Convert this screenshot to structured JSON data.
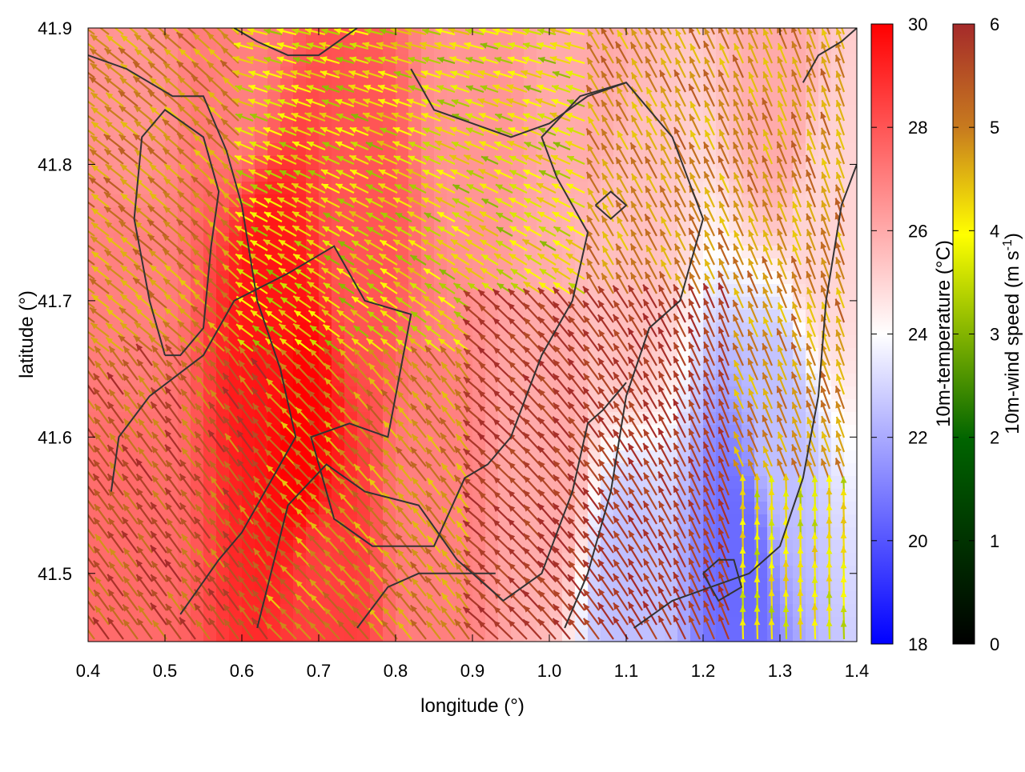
{
  "chart_data": {
    "type": "heatmap",
    "title": "",
    "xlabel": "longitude (°)",
    "ylabel": "latitude (°)",
    "xlim": [
      0.4,
      1.4
    ],
    "ylim": [
      41.45,
      41.9
    ],
    "xticks": [
      0.4,
      0.5,
      0.6,
      0.7,
      0.8,
      0.9,
      1.0,
      1.1,
      1.2,
      1.3,
      1.4
    ],
    "yticks": [
      41.5,
      41.6,
      41.7,
      41.8,
      41.9
    ],
    "xtick_labels": [
      "0.4",
      "0.5",
      "0.6",
      "0.7",
      "0.8",
      "0.9",
      "1.0",
      "1.1",
      "1.2",
      "1.3",
      "1.4"
    ],
    "ytick_labels": [
      "41.5",
      "41.6",
      "41.7",
      "41.8",
      "41.9"
    ],
    "grid": false,
    "temperature_colorbar": {
      "label": "10m-temperature (°C)",
      "range": [
        18,
        30
      ],
      "ticks": [
        18,
        20,
        22,
        24,
        26,
        28,
        30
      ],
      "tick_labels": [
        "18",
        "20",
        "22",
        "24",
        "26",
        "28",
        "30"
      ],
      "colors": [
        "#0000ff",
        "#ffffff",
        "#ff0000"
      ]
    },
    "wind_colorbar": {
      "label_main": "10m-wind speed (m s",
      "label_sup": "-1",
      "label_end": ")",
      "range": [
        0,
        6
      ],
      "ticks": [
        0,
        1,
        2,
        3,
        4,
        5,
        6
      ],
      "tick_labels": [
        "0",
        "1",
        "2",
        "3",
        "4",
        "5",
        "6"
      ],
      "colors": [
        "#000000",
        "#006400",
        "#ffff00",
        "#c87c1e",
        "#a52a2a"
      ]
    },
    "temperature_field_samples": [
      {
        "lon": 0.45,
        "lat": 41.85,
        "t": 26.5
      },
      {
        "lon": 0.45,
        "lat": 41.7,
        "t": 27.0
      },
      {
        "lon": 0.45,
        "lat": 41.55,
        "t": 27.5
      },
      {
        "lon": 0.63,
        "lat": 41.7,
        "t": 29.5
      },
      {
        "lon": 0.68,
        "lat": 41.6,
        "t": 30.0
      },
      {
        "lon": 0.75,
        "lat": 41.75,
        "t": 28.0
      },
      {
        "lon": 0.9,
        "lat": 41.85,
        "t": 26.5
      },
      {
        "lon": 1.05,
        "lat": 41.88,
        "t": 26.0
      },
      {
        "lon": 0.85,
        "lat": 41.55,
        "t": 27.0
      },
      {
        "lon": 1.0,
        "lat": 41.6,
        "t": 26.0
      },
      {
        "lon": 1.1,
        "lat": 41.72,
        "t": 25.5
      },
      {
        "lon": 1.3,
        "lat": 41.85,
        "t": 26.0
      },
      {
        "lon": 1.35,
        "lat": 41.75,
        "t": 25.0
      },
      {
        "lon": 1.3,
        "lat": 41.6,
        "t": 22.5
      },
      {
        "lon": 1.25,
        "lat": 41.5,
        "t": 20.5
      },
      {
        "lon": 1.1,
        "lat": 41.48,
        "t": 22.5
      },
      {
        "lon": 0.6,
        "lat": 41.88,
        "t": 27.0
      },
      {
        "lon": 0.7,
        "lat": 41.48,
        "t": 28.5
      }
    ],
    "contours": [
      [
        [
          0.43,
          41.56
        ],
        [
          0.44,
          41.6
        ],
        [
          0.48,
          41.63
        ],
        [
          0.55,
          41.66
        ],
        [
          0.59,
          41.7
        ],
        [
          0.66,
          41.72
        ],
        [
          0.72,
          41.74
        ],
        [
          0.76,
          41.7
        ],
        [
          0.82,
          41.69
        ],
        [
          0.79,
          41.6
        ],
        [
          0.74,
          41.61
        ],
        [
          0.69,
          41.6
        ],
        [
          0.72,
          41.54
        ],
        [
          0.77,
          41.52
        ],
        [
          0.85,
          41.52
        ],
        [
          0.89,
          41.57
        ],
        [
          0.92,
          41.58
        ],
        [
          0.95,
          41.6
        ],
        [
          0.99,
          41.66
        ],
        [
          1.03,
          41.7
        ],
        [
          1.05,
          41.75
        ],
        [
          1.01,
          41.79
        ],
        [
          0.99,
          41.82
        ],
        [
          1.04,
          41.85
        ],
        [
          1.1,
          41.86
        ],
        [
          1.16,
          41.82
        ],
        [
          1.2,
          41.76
        ],
        [
          1.17,
          41.7
        ],
        [
          1.13,
          41.68
        ],
        [
          1.1,
          41.63
        ],
        [
          1.08,
          41.56
        ],
        [
          1.05,
          41.5
        ],
        [
          1.02,
          41.46
        ]
      ],
      [
        [
          0.52,
          41.47
        ],
        [
          0.57,
          41.51
        ],
        [
          0.6,
          41.53
        ],
        [
          0.64,
          41.57
        ],
        [
          0.67,
          41.6
        ],
        [
          0.65,
          41.65
        ],
        [
          0.62,
          41.7
        ],
        [
          0.6,
          41.77
        ],
        [
          0.58,
          41.81
        ],
        [
          0.55,
          41.85
        ],
        [
          0.51,
          41.85
        ],
        [
          0.45,
          41.87
        ],
        [
          0.4,
          41.88
        ]
      ],
      [
        [
          0.62,
          41.46
        ],
        [
          0.66,
          41.55
        ],
        [
          0.71,
          41.58
        ],
        [
          0.76,
          41.56
        ],
        [
          0.83,
          41.55
        ],
        [
          0.88,
          41.51
        ],
        [
          0.94,
          41.48
        ],
        [
          0.99,
          41.5
        ],
        [
          1.03,
          41.56
        ],
        [
          1.05,
          41.61
        ],
        [
          1.07,
          41.62
        ],
        [
          1.1,
          41.64
        ]
      ],
      [
        [
          0.75,
          41.46
        ],
        [
          0.79,
          41.49
        ],
        [
          0.83,
          41.5
        ],
        [
          0.88,
          41.5
        ],
        [
          0.93,
          41.5
        ]
      ],
      [
        [
          0.5,
          41.66
        ],
        [
          0.48,
          41.7
        ],
        [
          0.46,
          41.76
        ],
        [
          0.47,
          41.82
        ],
        [
          0.5,
          41.84
        ],
        [
          0.55,
          41.82
        ],
        [
          0.57,
          41.78
        ],
        [
          0.56,
          41.74
        ],
        [
          0.55,
          41.68
        ],
        [
          0.52,
          41.66
        ],
        [
          0.5,
          41.66
        ]
      ],
      [
        [
          1.11,
          41.46
        ],
        [
          1.16,
          41.48
        ],
        [
          1.21,
          41.49
        ],
        [
          1.26,
          41.5
        ],
        [
          1.3,
          41.52
        ],
        [
          1.33,
          41.57
        ],
        [
          1.35,
          41.63
        ],
        [
          1.36,
          41.7
        ],
        [
          1.38,
          41.77
        ],
        [
          1.4,
          41.8
        ]
      ],
      [
        [
          1.33,
          41.86
        ],
        [
          1.35,
          41.88
        ],
        [
          1.38,
          41.89
        ],
        [
          1.4,
          41.9
        ]
      ],
      [
        [
          1.2,
          41.5
        ],
        [
          1.22,
          41.51
        ],
        [
          1.24,
          41.51
        ],
        [
          1.25,
          41.49
        ],
        [
          1.22,
          41.48
        ],
        [
          1.2,
          41.5
        ]
      ],
      [
        [
          1.06,
          41.77
        ],
        [
          1.08,
          41.78
        ],
        [
          1.1,
          41.77
        ],
        [
          1.08,
          41.76
        ],
        [
          1.06,
          41.77
        ]
      ],
      [
        [
          0.59,
          41.9
        ],
        [
          0.62,
          41.89
        ],
        [
          0.66,
          41.88
        ],
        [
          0.7,
          41.88
        ],
        [
          0.75,
          41.9
        ]
      ],
      [
        [
          0.82,
          41.87
        ],
        [
          0.85,
          41.84
        ],
        [
          0.9,
          41.83
        ],
        [
          0.95,
          41.82
        ],
        [
          1.0,
          41.83
        ],
        [
          1.05,
          41.85
        ],
        [
          1.1,
          41.86
        ]
      ]
    ]
  }
}
